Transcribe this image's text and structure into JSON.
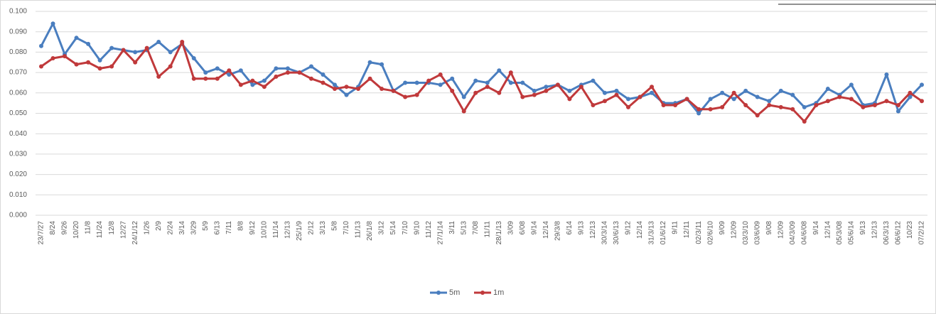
{
  "chart_data": {
    "type": "line",
    "categories": [
      "23/7/27",
      "8/24",
      "9/26",
      "10/20",
      "11/8",
      "11/24",
      "12/8",
      "12/27",
      "24/1/12",
      "1/26",
      "2/9",
      "2/24",
      "3/14",
      "3/29",
      "5/9",
      "6/13",
      "7/11",
      "8/8",
      "9/12",
      "10/10",
      "11/14",
      "12/13",
      "25/1/9",
      "2/12",
      "3/13",
      "5/8",
      "7/10",
      "11/13",
      "26/1/8",
      "3/12",
      "5/14",
      "7/10",
      "9/10",
      "11/12",
      "27/1/14",
      "3/11",
      "5/13",
      "7/08",
      "11/11",
      "28/1/13",
      "3/09",
      "6/08",
      "9/14",
      "12/14",
      "29/3/8",
      "6/14",
      "9/13",
      "12/13",
      "30/3/14",
      "30/6/13",
      "9/12",
      "12/14",
      "31/3/13",
      "01/6/12",
      "9/11",
      "12/11",
      "02/3/11",
      "02/6/10",
      "9/09",
      "12/09",
      "03/3/10",
      "03/6/09",
      "9/08",
      "12/09",
      "04/3/09",
      "04/6/08",
      "9/14",
      "12/14",
      "05/3/08",
      "05/6/14",
      "9/13",
      "12/13",
      "06/3/13",
      "06/6/12",
      "10/23",
      "07/2/12"
    ],
    "series": [
      {
        "name": "5m",
        "color": "#4a7ebf",
        "values": [
          0.083,
          0.094,
          0.079,
          0.087,
          0.084,
          0.076,
          0.082,
          0.081,
          0.08,
          0.081,
          0.085,
          0.08,
          0.084,
          0.077,
          0.07,
          0.072,
          0.069,
          0.071,
          0.064,
          0.066,
          0.072,
          0.072,
          0.07,
          0.073,
          0.069,
          0.064,
          0.059,
          0.063,
          0.075,
          0.074,
          0.061,
          0.065,
          0.065,
          0.065,
          0.064,
          0.067,
          0.058,
          0.066,
          0.065,
          0.071,
          0.065,
          0.065,
          0.061,
          0.063,
          0.064,
          0.061,
          0.064,
          0.066,
          0.06,
          0.061,
          0.057,
          0.058,
          0.06,
          0.055,
          0.055,
          0.057,
          0.05,
          0.057,
          0.06,
          0.057,
          0.061,
          0.058,
          0.056,
          0.061,
          0.059,
          0.053,
          0.055,
          0.062,
          0.059,
          0.064,
          0.054,
          0.055,
          0.069,
          0.051,
          0.058,
          0.064
        ]
      },
      {
        "name": "1m",
        "color": "#c0393b",
        "values": [
          0.073,
          0.077,
          0.078,
          0.074,
          0.075,
          0.072,
          0.073,
          0.081,
          0.075,
          0.082,
          0.068,
          0.073,
          0.085,
          0.067,
          0.067,
          0.067,
          0.071,
          0.064,
          0.066,
          0.063,
          0.068,
          0.07,
          0.07,
          0.067,
          0.065,
          0.062,
          0.063,
          0.062,
          0.067,
          0.062,
          0.061,
          0.058,
          0.059,
          0.066,
          0.069,
          0.061,
          0.051,
          0.06,
          0.063,
          0.06,
          0.07,
          0.058,
          0.059,
          0.061,
          0.064,
          0.057,
          0.063,
          0.054,
          0.056,
          0.059,
          0.053,
          0.058,
          0.063,
          0.054,
          0.054,
          0.057,
          0.052,
          0.052,
          0.053,
          0.06,
          0.054,
          0.049,
          0.054,
          0.053,
          0.052,
          0.046,
          0.054,
          0.056,
          0.058,
          0.057,
          0.053,
          0.054,
          0.056,
          0.054,
          0.06,
          0.056
        ]
      }
    ],
    "ylim": [
      0,
      0.1
    ],
    "yticks": [
      {
        "value": 0,
        "label": "0.000"
      },
      {
        "value": 0.01,
        "label": "0.010"
      },
      {
        "value": 0.02,
        "label": "0.020"
      },
      {
        "value": 0.03,
        "label": "0.030"
      },
      {
        "value": 0.04,
        "label": "0.040"
      },
      {
        "value": 0.05,
        "label": "0.050"
      },
      {
        "value": 0.06,
        "label": "0.060"
      },
      {
        "value": 0.07,
        "label": "0.070"
      },
      {
        "value": 0.08,
        "label": "0.080"
      },
      {
        "value": 0.09,
        "label": "0.090"
      },
      {
        "value": 0.1,
        "label": "0.100"
      }
    ],
    "grid": true,
    "legend": "bottom"
  }
}
